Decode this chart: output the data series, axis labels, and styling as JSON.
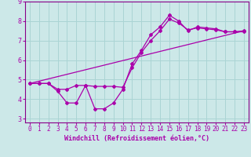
{
  "xlabel": "Windchill (Refroidissement éolien,°C)",
  "ylabel": "",
  "bg_color": "#cce8e8",
  "grid_color": "#aad4d4",
  "line_color": "#aa00aa",
  "xlim": [
    -0.5,
    23.5
  ],
  "ylim": [
    2.8,
    9.0
  ],
  "xticks": [
    0,
    1,
    2,
    3,
    4,
    5,
    6,
    7,
    8,
    9,
    10,
    11,
    12,
    13,
    14,
    15,
    16,
    17,
    18,
    19,
    20,
    21,
    22,
    23
  ],
  "yticks": [
    3,
    4,
    5,
    6,
    7,
    8,
    9
  ],
  "line1_x": [
    0,
    1,
    2,
    3,
    4,
    5,
    6,
    7,
    8,
    9,
    10,
    11,
    12,
    13,
    14,
    15,
    16,
    17,
    18,
    19,
    20,
    21,
    22,
    23
  ],
  "line1_y": [
    4.8,
    4.8,
    4.8,
    4.4,
    3.8,
    3.8,
    4.7,
    3.5,
    3.5,
    3.8,
    4.5,
    5.8,
    6.5,
    7.3,
    7.7,
    8.3,
    8.0,
    7.5,
    7.7,
    7.65,
    7.6,
    7.45,
    7.45,
    7.5
  ],
  "line2_x": [
    0,
    1,
    2,
    3,
    4,
    5,
    6,
    7,
    8,
    9,
    10,
    11,
    12,
    13,
    14,
    15,
    16,
    17,
    18,
    19,
    20,
    21,
    22,
    23
  ],
  "line2_y": [
    4.8,
    4.8,
    4.8,
    4.5,
    4.5,
    4.7,
    4.7,
    4.65,
    4.65,
    4.65,
    4.6,
    5.6,
    6.4,
    7.0,
    7.5,
    8.1,
    7.9,
    7.55,
    7.65,
    7.6,
    7.55,
    7.45,
    7.45,
    7.45
  ],
  "line3_x": [
    0,
    23
  ],
  "line3_y": [
    4.8,
    7.5
  ],
  "xlabel_fontsize": 6,
  "tick_fontsize": 5.5
}
